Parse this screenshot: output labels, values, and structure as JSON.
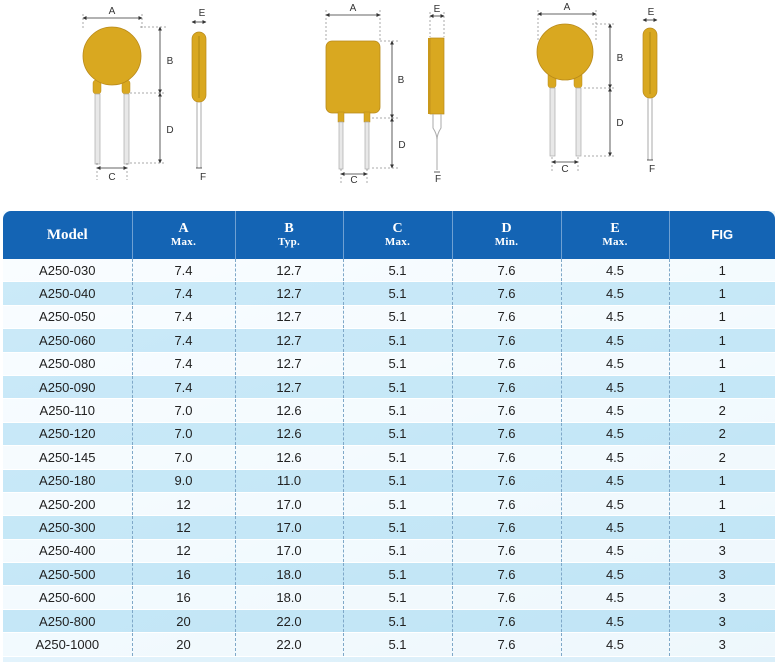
{
  "diagrams": {
    "labels": {
      "a": "A",
      "b": "B",
      "c": "C",
      "d": "D",
      "e": "E",
      "f": "F"
    },
    "body_color": "#d9a820",
    "lead_color": "#e8e8e8"
  },
  "table": {
    "header_color": "#1464b4",
    "columns": [
      {
        "letter": "Model",
        "sub": ""
      },
      {
        "letter": "A",
        "sub": "Max."
      },
      {
        "letter": "B",
        "sub": "Typ."
      },
      {
        "letter": "C",
        "sub": "Max."
      },
      {
        "letter": "D",
        "sub": "Min."
      },
      {
        "letter": "E",
        "sub": "Max."
      },
      {
        "letter": "FIG",
        "sub": ""
      }
    ],
    "rows": [
      [
        "A250-030",
        "7.4",
        "12.7",
        "5.1",
        "7.6",
        "4.5",
        "1"
      ],
      [
        "A250-040",
        "7.4",
        "12.7",
        "5.1",
        "7.6",
        "4.5",
        "1"
      ],
      [
        "A250-050",
        "7.4",
        "12.7",
        "5.1",
        "7.6",
        "4.5",
        "1"
      ],
      [
        "A250-060",
        "7.4",
        "12.7",
        "5.1",
        "7.6",
        "4.5",
        "1"
      ],
      [
        "A250-080",
        "7.4",
        "12.7",
        "5.1",
        "7.6",
        "4.5",
        "1"
      ],
      [
        "A250-090",
        "7.4",
        "12.7",
        "5.1",
        "7.6",
        "4.5",
        "1"
      ],
      [
        "A250-110",
        "7.0",
        "12.6",
        "5.1",
        "7.6",
        "4.5",
        "2"
      ],
      [
        "A250-120",
        "7.0",
        "12.6",
        "5.1",
        "7.6",
        "4.5",
        "2"
      ],
      [
        "A250-145",
        "7.0",
        "12.6",
        "5.1",
        "7.6",
        "4.5",
        "2"
      ],
      [
        "A250-180",
        "9.0",
        "11.0",
        "5.1",
        "7.6",
        "4.5",
        "1"
      ],
      [
        "A250-200",
        "12",
        "17.0",
        "5.1",
        "7.6",
        "4.5",
        "1"
      ],
      [
        "A250-300",
        "12",
        "17.0",
        "5.1",
        "7.6",
        "4.5",
        "1"
      ],
      [
        "A250-400",
        "12",
        "17.0",
        "5.1",
        "7.6",
        "4.5",
        "3"
      ],
      [
        "A250-500",
        "16",
        "18.0",
        "5.1",
        "7.6",
        "4.5",
        "3"
      ],
      [
        "A250-600",
        "16",
        "18.0",
        "5.1",
        "7.6",
        "4.5",
        "3"
      ],
      [
        "A250-800",
        "20",
        "22.0",
        "5.1",
        "7.6",
        "4.5",
        "3"
      ],
      [
        "A250-1000",
        "20",
        "22.0",
        "5.1",
        "7.6",
        "4.5",
        "3"
      ]
    ]
  }
}
